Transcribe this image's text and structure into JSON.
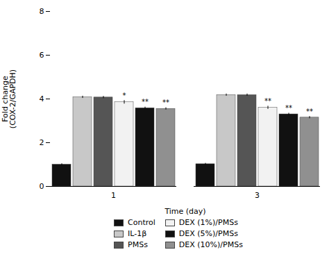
{
  "chart_data": {
    "type": "bar",
    "title": "",
    "xlabel": "Time (day)",
    "ylabel": "Fold change\n(COX-2/GAPDH)",
    "categories": [
      "1",
      "3"
    ],
    "series": [
      {
        "name": "Control",
        "color": "#111111",
        "values": [
          1.0,
          1.02
        ],
        "errors": [
          0.04,
          0.04
        ],
        "annotations": [
          null,
          null
        ]
      },
      {
        "name": "IL-1β",
        "color": "#c8c8c8",
        "values": [
          4.08,
          4.18
        ],
        "errors": [
          0.05,
          0.05
        ],
        "annotations": [
          null,
          null
        ]
      },
      {
        "name": "PMSs",
        "color": "#555555",
        "values": [
          4.07,
          4.18
        ],
        "errors": [
          0.05,
          0.05
        ],
        "annotations": [
          null,
          null
        ]
      },
      {
        "name": "DEX (1%)/PMSs",
        "color": "#f2f2f2",
        "values": [
          3.85,
          3.6
        ],
        "errors": [
          0.08,
          0.07
        ],
        "annotations": [
          "*",
          "**"
        ]
      },
      {
        "name": "DEX (5%)/PMSs",
        "color": "#111111",
        "values": [
          3.58,
          3.3
        ],
        "errors": [
          0.05,
          0.05
        ],
        "annotations": [
          "**",
          "**"
        ]
      },
      {
        "name": "DEX (10%)/PMSs",
        "color": "#909090",
        "values": [
          3.55,
          3.15
        ],
        "errors": [
          0.05,
          0.05
        ],
        "annotations": [
          "**",
          "**"
        ]
      }
    ],
    "ylim": [
      0,
      8
    ],
    "yticks": [
      0,
      2,
      4,
      6,
      8
    ],
    "legend": "bottom"
  }
}
